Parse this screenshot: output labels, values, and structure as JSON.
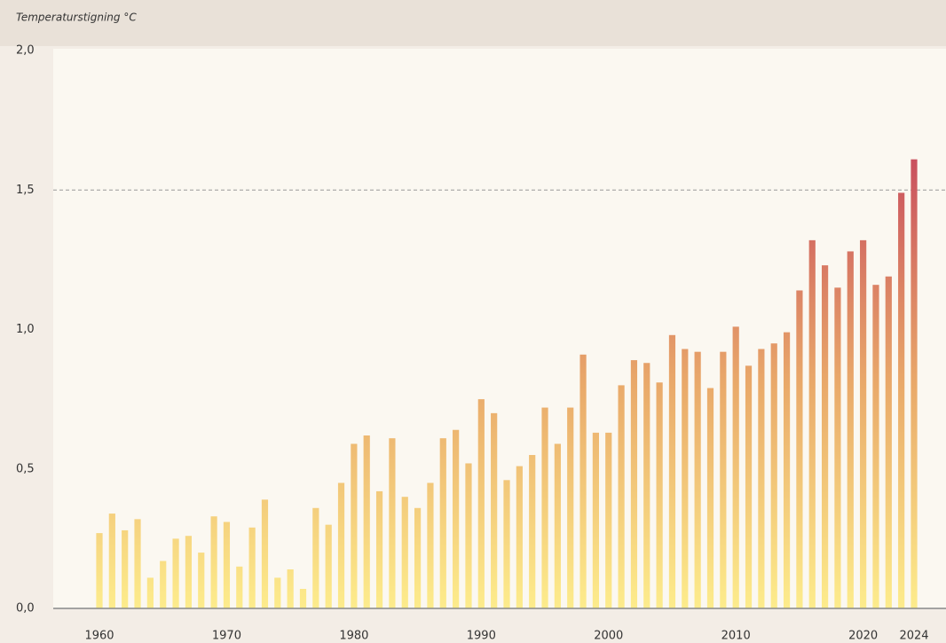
{
  "chart_data": {
    "type": "bar",
    "title": "Temperaturstigning °C",
    "categories": [
      1960,
      null,
      null,
      null,
      null,
      null,
      null,
      null,
      null,
      null,
      1970,
      null,
      null,
      null,
      null,
      null,
      null,
      null,
      null,
      null,
      1980,
      null,
      null,
      null,
      null,
      null,
      null,
      null,
      null,
      null,
      1990,
      null,
      null,
      null,
      null,
      null,
      null,
      null,
      null,
      null,
      2000,
      null,
      null,
      null,
      null,
      null,
      null,
      null,
      null,
      null,
      2010,
      null,
      null,
      null,
      null,
      null,
      null,
      null,
      null,
      null,
      2020,
      null,
      null,
      null,
      2024
    ],
    "values": [
      0.27,
      0.34,
      0.28,
      0.32,
      0.11,
      0.17,
      0.25,
      0.26,
      0.2,
      0.33,
      0.31,
      0.15,
      0.29,
      0.39,
      0.11,
      0.14,
      0.07,
      0.36,
      0.3,
      0.45,
      0.59,
      0.62,
      0.42,
      0.61,
      0.4,
      0.36,
      0.45,
      0.61,
      0.64,
      0.52,
      0.75,
      0.7,
      0.46,
      0.51,
      0.55,
      0.72,
      0.59,
      0.72,
      0.91,
      0.63,
      0.63,
      0.8,
      0.89,
      0.88,
      0.81,
      0.98,
      0.93,
      0.92,
      0.79,
      0.92,
      1.01,
      0.87,
      0.93,
      0.95,
      0.99,
      1.14,
      1.32,
      1.23,
      1.15,
      1.28,
      1.32,
      1.16,
      1.19,
      1.49,
      1.61
    ],
    "colors": [
      "#fdec8c",
      "#e9a96a",
      "#c9505e"
    ],
    "ylim": [
      0,
      2
    ],
    "yticks": [
      {
        "value": 0,
        "label": "0,0"
      },
      {
        "value": 0.5,
        "label": "0,5"
      },
      {
        "value": 1,
        "label": "1,0"
      },
      {
        "value": 1.5,
        "label": "1,5"
      },
      {
        "value": 2,
        "label": "2,0"
      }
    ],
    "reference_line": 1.5
  }
}
